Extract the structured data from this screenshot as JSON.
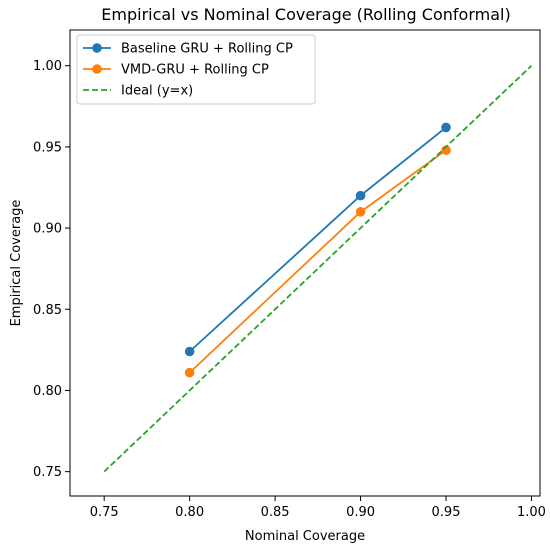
{
  "chart_data": {
    "type": "line",
    "title": "Empirical vs Nominal Coverage (Rolling Conformal)",
    "xlabel": "Nominal Coverage",
    "ylabel": "Empirical Coverage",
    "xlim": [
      0.73,
      1.005
    ],
    "ylim": [
      0.735,
      1.022
    ],
    "xticks": [
      0.75,
      0.8,
      0.85,
      0.9,
      0.95,
      1.0
    ],
    "xtick_labels": [
      "0.75",
      "0.80",
      "0.85",
      "0.90",
      "0.95",
      "1.00"
    ],
    "yticks": [
      0.75,
      0.8,
      0.85,
      0.9,
      0.95,
      1.0
    ],
    "ytick_labels": [
      "0.75",
      "0.80",
      "0.85",
      "0.90",
      "0.95",
      "1.00"
    ],
    "grid": false,
    "legend_position": "top-left",
    "series": [
      {
        "name": "Baseline GRU + Rolling CP",
        "color": "#1f77b4",
        "style": "solid",
        "marker": "circle",
        "x": [
          0.8,
          0.9,
          0.95
        ],
        "y": [
          0.824,
          0.92,
          0.962
        ]
      },
      {
        "name": "VMD-GRU + Rolling CP",
        "color": "#ff7f0e",
        "style": "solid",
        "marker": "circle",
        "x": [
          0.8,
          0.9,
          0.95
        ],
        "y": [
          0.811,
          0.91,
          0.948
        ]
      },
      {
        "name": "Ideal (y=x)",
        "color": "#2ca02c",
        "style": "dashed",
        "marker": "none",
        "x": [
          0.75,
          1.0
        ],
        "y": [
          0.75,
          1.0
        ]
      }
    ]
  }
}
